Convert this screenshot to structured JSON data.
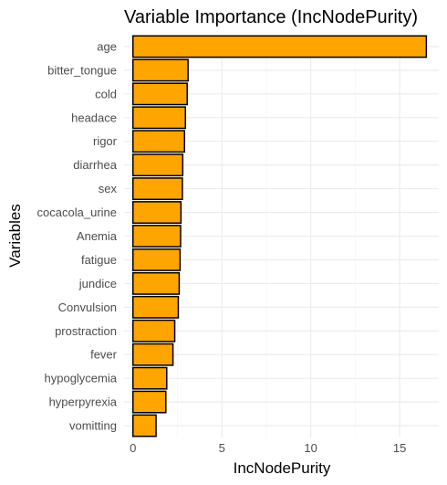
{
  "chart_data": {
    "type": "bar",
    "orientation": "horizontal",
    "title": "Variable Importance (IncNodePurity)",
    "xlabel": "IncNodePurity",
    "ylabel": "Variables",
    "categories": [
      "age",
      "bitter_tongue",
      "cold",
      "headace",
      "rigor",
      "diarrhea",
      "sex",
      "cocacola_urine",
      "Anemia",
      "fatigue",
      "jundice",
      "Convulsion",
      "prostraction",
      "fever",
      "hypoglycemia",
      "hyperpyrexia",
      "vomitting"
    ],
    "values": [
      16.5,
      3.1,
      3.05,
      2.95,
      2.9,
      2.8,
      2.78,
      2.7,
      2.68,
      2.65,
      2.6,
      2.55,
      2.35,
      2.25,
      1.9,
      1.85,
      1.3
    ],
    "xlim": [
      -0.5,
      17.2
    ],
    "xticks": [
      0,
      5,
      10,
      15
    ],
    "grid": true,
    "legend": "none",
    "colors": {
      "bar_fill": "#FFA500",
      "bar_stroke": "#000000"
    }
  }
}
